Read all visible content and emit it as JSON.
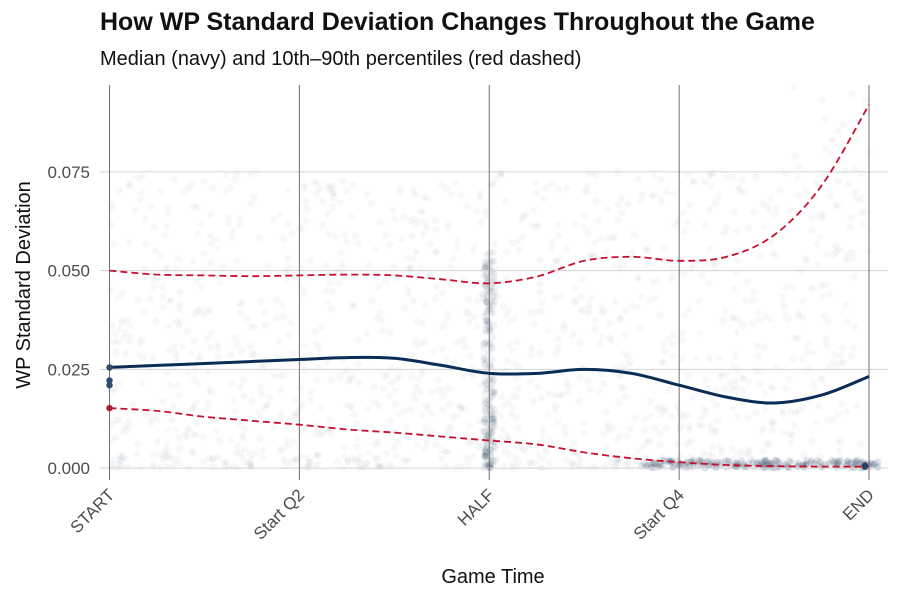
{
  "chart_data": {
    "type": "line",
    "title": "How WP Standard Deviation Changes Throughout the Game",
    "subtitle": "Median (navy) and 10th–90th percentiles (red dashed)",
    "xlabel": "Game Time",
    "ylabel": "WP Standard Deviation",
    "x_tick_labels": [
      "START",
      "Start Q2",
      "HALF",
      "Start Q4",
      "END"
    ],
    "y_tick_labels": [
      "0.000",
      "0.025",
      "0.050",
      "0.075"
    ],
    "y_ticks": [
      0,
      0.025,
      0.05,
      0.075
    ],
    "ylim": [
      -0.003,
      0.097
    ],
    "xlim": [
      -0.05,
      4.1
    ],
    "grid": true,
    "series": [
      {
        "name": "Median",
        "color": "#0b2d55",
        "style": "solid",
        "x": [
          0,
          0.25,
          0.5,
          0.75,
          1,
          1.25,
          1.5,
          1.75,
          2,
          2.25,
          2.5,
          2.75,
          3,
          3.25,
          3.5,
          3.75,
          4
        ],
        "values": [
          0.0255,
          0.026,
          0.0265,
          0.027,
          0.0275,
          0.028,
          0.0278,
          0.026,
          0.024,
          0.024,
          0.025,
          0.024,
          0.021,
          0.018,
          0.0165,
          0.0185,
          0.0232
        ]
      },
      {
        "name": "90th percentile",
        "color": "#c8102e",
        "style": "dashed",
        "x": [
          0,
          0.25,
          0.5,
          0.75,
          1,
          1.25,
          1.5,
          1.75,
          2,
          2.25,
          2.5,
          2.75,
          3,
          3.25,
          3.5,
          3.75,
          4
        ],
        "values": [
          0.05,
          0.049,
          0.0488,
          0.0486,
          0.0488,
          0.049,
          0.0488,
          0.0478,
          0.0468,
          0.0485,
          0.0525,
          0.0535,
          0.0525,
          0.0535,
          0.059,
          0.0715,
          0.092
        ]
      },
      {
        "name": "10th percentile",
        "color": "#c8102e",
        "style": "dashed",
        "x": [
          0,
          0.25,
          0.5,
          0.75,
          1,
          1.25,
          1.5,
          1.75,
          2,
          2.25,
          2.5,
          2.75,
          3,
          3.25,
          3.5,
          3.75,
          4
        ],
        "values": [
          0.0152,
          0.0145,
          0.013,
          0.012,
          0.011,
          0.0098,
          0.009,
          0.008,
          0.007,
          0.006,
          0.004,
          0.0025,
          0.0015,
          0.0008,
          0.0005,
          0.0004,
          0.0004
        ]
      }
    ],
    "start_points": [
      0.0255,
      0.0222,
      0.021,
      0.0152
    ],
    "end_points": [
      0.0005,
      0.0008,
      0.0003
    ]
  }
}
